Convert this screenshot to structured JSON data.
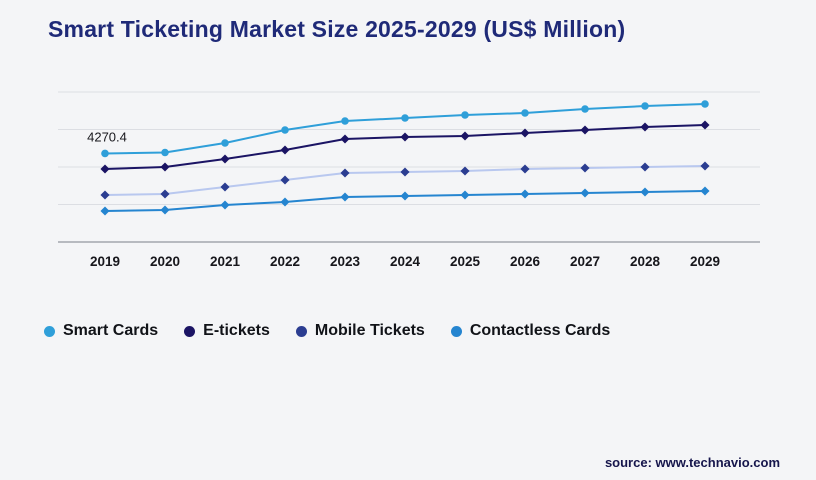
{
  "title": "Smart Ticketing Market Size 2025-2029 (US$ Million)",
  "source": "source: www.technavio.com",
  "colors": {
    "background": "#f4f5f7",
    "title_text": "#1f2a78",
    "gridline": "#dcdee3",
    "axis_line": "#7a8088",
    "tick_label": "#17171c"
  },
  "chart_data": {
    "type": "line",
    "x": [
      "2019",
      "2020",
      "2021",
      "2022",
      "2023",
      "2024",
      "2025",
      "2026",
      "2027",
      "2028",
      "2029"
    ],
    "series": [
      {
        "name": "Smart Cards",
        "color": "#2f9fd9",
        "marker": "circle",
        "values": [
          4270.4,
          4290,
          4480,
          4740,
          4920,
          4980,
          5040,
          5080,
          5160,
          5220,
          5260
        ]
      },
      {
        "name": "E-tickets",
        "color": "#1b1464",
        "marker": "diamond",
        "values": [
          3960,
          4000,
          4160,
          4340,
          4560,
          4600,
          4620,
          4680,
          4740,
          4800,
          4840
        ]
      },
      {
        "name": "Mobile Tickets",
        "color": "#b9c8ef",
        "marker_color": "#2b3d91",
        "marker": "diamond",
        "values": [
          3440,
          3460,
          3600,
          3740,
          3880,
          3900,
          3920,
          3960,
          3980,
          4000,
          4020
        ]
      },
      {
        "name": "Contactless Cards",
        "color": "#2585d0",
        "marker": "diamond",
        "values": [
          3120,
          3140,
          3240,
          3300,
          3400,
          3420,
          3440,
          3460,
          3480,
          3500,
          3520
        ]
      }
    ],
    "ylim": [
      2500,
      5500
    ],
    "grid": true,
    "gridline_count": 5,
    "legend_position": "bottom",
    "annotation": {
      "series": "Smart Cards",
      "x": "2019",
      "label": "4270.4"
    },
    "title": "Smart Ticketing Market Size 2025-2029 (US$ Million)",
    "xlabel": "",
    "ylabel": ""
  }
}
